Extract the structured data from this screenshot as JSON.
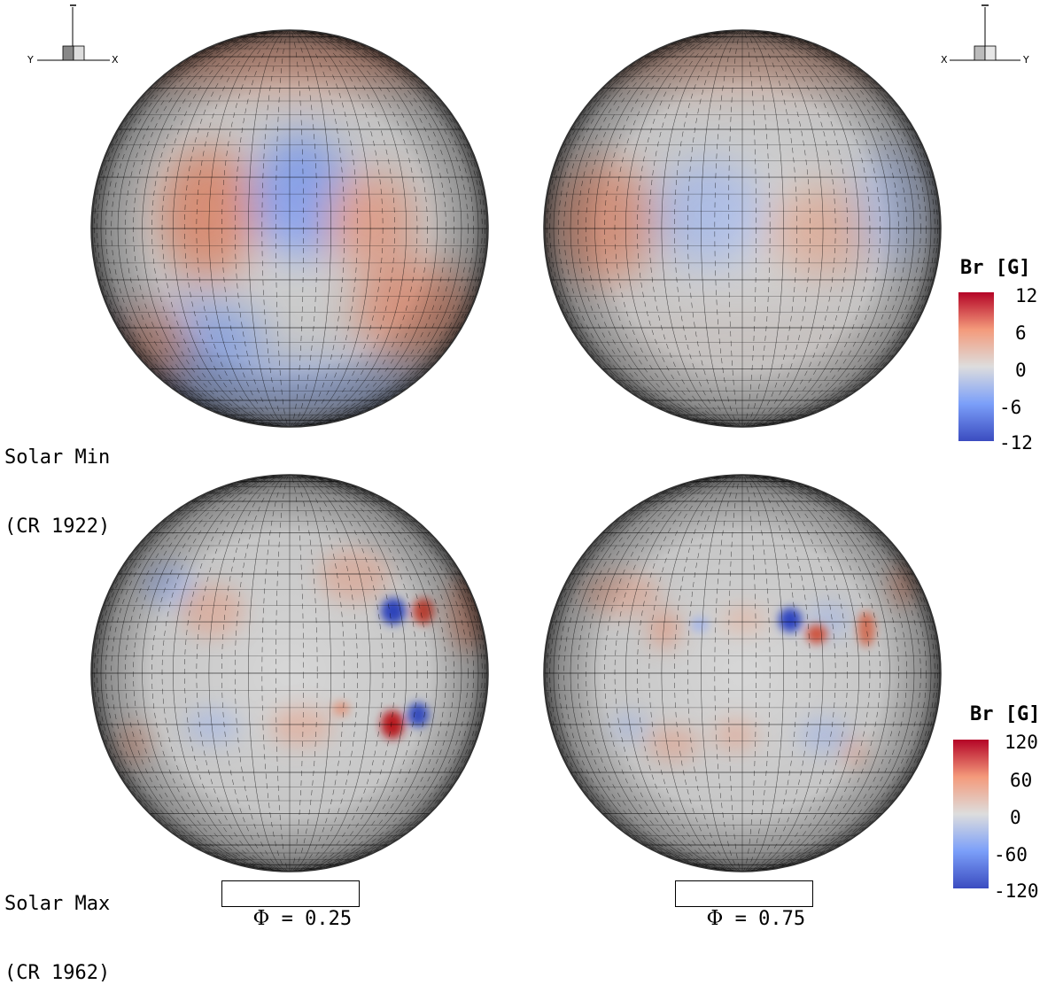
{
  "panels": [
    {
      "id": "min-phi25",
      "row": "solar-min",
      "phase_index": 0
    },
    {
      "id": "min-phi75",
      "row": "solar-min",
      "phase_index": 1
    },
    {
      "id": "max-phi25",
      "row": "solar-max",
      "phase_index": 0
    },
    {
      "id": "max-phi75",
      "row": "solar-max",
      "phase_index": 1
    }
  ],
  "rows": {
    "solar_min": {
      "line1": "Solar Min",
      "line2": "(CR 1922)"
    },
    "solar_max": {
      "line1": "Solar Max",
      "line2": "(CR 1962)"
    }
  },
  "phases": [
    {
      "symbol": "Φ",
      "text": " = 0.25"
    },
    {
      "symbol": "Φ",
      "text": " = 0.75"
    }
  ],
  "axes_triads": [
    {
      "left": "Y",
      "right": "X",
      "top": "–"
    },
    {
      "left": "X",
      "right": "Y",
      "top": "–"
    }
  ],
  "colorbars": [
    {
      "title": "Br [G]",
      "ticks": [
        "12",
        "6",
        "0",
        "-6",
        "-12"
      ],
      "range": [
        -12,
        12
      ]
    },
    {
      "title": "Br [G]",
      "ticks": [
        "120",
        "60",
        "0",
        "-60",
        "-120"
      ],
      "range": [
        -120,
        120
      ]
    }
  ],
  "colormap": {
    "stops": [
      "#3b4cc0",
      "#7b9ff9",
      "#dddddd",
      "#f49a7b",
      "#b40426"
    ],
    "neutral": "#d8d8d8"
  }
}
